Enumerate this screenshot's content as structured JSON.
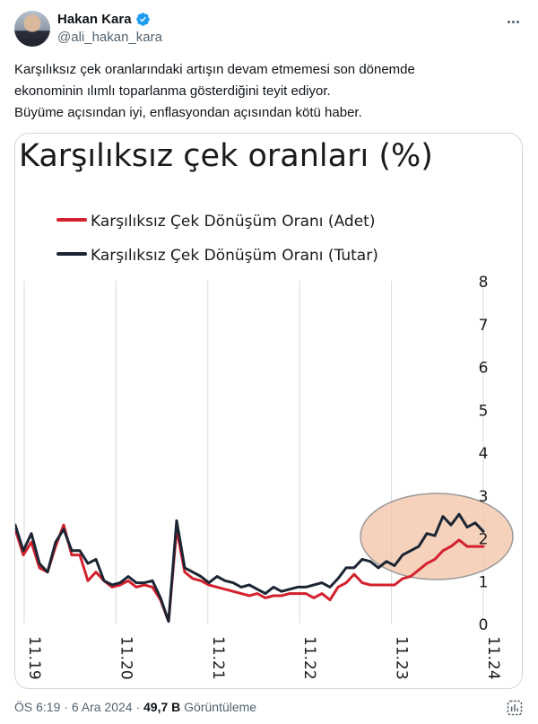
{
  "author": {
    "display_name": "Hakan Kara",
    "handle": "@ali_hakan_kara",
    "verified": true
  },
  "tweet": {
    "lines": [
      "Karşılıksız çek oranlarındaki artışın devam etmemesi son dönemde",
      "ekonominin ılımlı toparlanma gösterdiğini teyit ediyor.",
      "Büyüme açısından iyi, enflasyondan açısından kötü haber."
    ]
  },
  "meta": {
    "time": "ÖS 6:19",
    "date": "6 Ara 2024",
    "separator": "·",
    "views_count": "49,7 B",
    "views_label": "Görüntüleme"
  },
  "icons": {
    "more": "more-horizontal-icon",
    "verified": "verified-badge-icon",
    "analytics": "analytics-icon"
  },
  "colors": {
    "verified_blue": "#1d9bf0",
    "series_adet": "#d3212d",
    "series_tutar": "#1c2533",
    "highlight_fill": "#f3c3a6",
    "highlight_stroke": "#9a9a9a"
  },
  "chart_data": {
    "type": "line",
    "title": "Karşılıksız çek oranları (%)",
    "xlabel": "",
    "ylabel": "",
    "x_tick_labels": [
      "11.19",
      "11.20",
      "11.21",
      "11.22",
      "11.23",
      "11.24"
    ],
    "y_ticks": [
      0,
      1,
      2,
      3,
      4,
      5,
      6,
      7,
      8
    ],
    "ylim": [
      0,
      8
    ],
    "y_axis_side": "right",
    "legend_position": "top-left",
    "grid": "vertical",
    "annotation": "ellipse highlighting 2023-2024 rise",
    "series": [
      {
        "name": "Karşılıksız Çek Dönüşüm Oranı (Adet)",
        "color": "#d3212d",
        "values": [
          2.2,
          1.6,
          1.9,
          1.3,
          1.2,
          1.8,
          2.3,
          1.6,
          1.6,
          1.0,
          1.2,
          1.0,
          0.85,
          0.9,
          1.0,
          0.85,
          0.9,
          0.85,
          0.55,
          0.05,
          2.2,
          1.2,
          1.05,
          1.0,
          0.9,
          0.85,
          0.8,
          0.75,
          0.7,
          0.65,
          0.7,
          0.6,
          0.65,
          0.65,
          0.7,
          0.7,
          0.7,
          0.6,
          0.7,
          0.55,
          0.85,
          0.95,
          1.15,
          0.95,
          0.9,
          0.9,
          0.9,
          0.9,
          1.05,
          1.1,
          1.25,
          1.4,
          1.5,
          1.7,
          1.8,
          1.95,
          1.8,
          1.8,
          1.8
        ]
      },
      {
        "name": "Karşılıksız Çek Dönüşüm Oranı (Tutar)",
        "color": "#1c2533",
        "values": [
          2.3,
          1.7,
          2.1,
          1.4,
          1.2,
          1.9,
          2.2,
          1.7,
          1.7,
          1.4,
          1.5,
          1.0,
          0.9,
          0.95,
          1.1,
          0.95,
          0.95,
          1.0,
          0.6,
          0.05,
          2.4,
          1.3,
          1.2,
          1.1,
          0.95,
          1.1,
          1.0,
          0.95,
          0.85,
          0.9,
          0.8,
          0.7,
          0.85,
          0.75,
          0.8,
          0.85,
          0.85,
          0.9,
          0.95,
          0.85,
          1.05,
          1.3,
          1.3,
          1.5,
          1.45,
          1.3,
          1.45,
          1.35,
          1.6,
          1.7,
          1.8,
          2.1,
          2.05,
          2.5,
          2.3,
          2.55,
          2.25,
          2.35,
          2.15
        ]
      }
    ]
  }
}
